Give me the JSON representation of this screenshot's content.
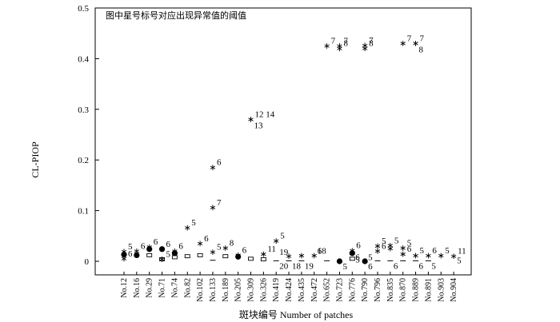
{
  "chart_data": {
    "type": "scatter",
    "title": "",
    "note": "图中星号标号对应出现异常值的阈值",
    "xlabel": "斑块编号 Number of patches",
    "ylabel": "CL-PIOP",
    "ylim": [
      0,
      0.5
    ],
    "yticks": [
      "0",
      "0.1",
      "0.2",
      "0.3",
      "0.4",
      "0.5"
    ],
    "grid": false,
    "categories": [
      "No.12",
      "No.16",
      "No.29",
      "No.71",
      "No.74",
      "No.82",
      "No.102",
      "No.133",
      "No.189",
      "No.205",
      "No.309",
      "No.326",
      "No.419",
      "No.424",
      "No.435",
      "No.472",
      "No.652",
      "No.723",
      "No.776",
      "No.790",
      "No.796",
      "No.835",
      "No.870",
      "No.889",
      "No.891",
      "No.903",
      "No.904"
    ],
    "points": [
      {
        "cat": "No.12",
        "y": 0.013,
        "marker": "dot"
      },
      {
        "cat": "No.12",
        "y": 0.019,
        "marker": "star",
        "label": "5"
      },
      {
        "cat": "No.12",
        "y": 0.005,
        "marker": "star",
        "label": "6"
      },
      {
        "cat": "No.16",
        "y": 0.012,
        "marker": "dot"
      },
      {
        "cat": "No.16",
        "y": 0.02,
        "marker": "star",
        "label": "6"
      },
      {
        "cat": "No.29",
        "y": 0.024,
        "marker": "dot"
      },
      {
        "cat": "No.29",
        "y": 0.012,
        "marker": "box"
      },
      {
        "cat": "No.29",
        "y": 0.028,
        "marker": "star",
        "label": "6"
      },
      {
        "cat": "No.71",
        "y": 0.024,
        "marker": "dot"
      },
      {
        "cat": "No.71",
        "y": 0.004,
        "marker": "box"
      },
      {
        "cat": "No.71",
        "y": 0.004,
        "marker": "star",
        "label": "5"
      },
      {
        "cat": "No.71",
        "y": 0.024,
        "marker": "star",
        "label": "6"
      },
      {
        "cat": "No.74",
        "y": 0.016,
        "marker": "dot"
      },
      {
        "cat": "No.74",
        "y": 0.008,
        "marker": "box"
      },
      {
        "cat": "No.74",
        "y": 0.02,
        "marker": "star",
        "label": "6"
      },
      {
        "cat": "No.82",
        "y": 0.01,
        "marker": "box"
      },
      {
        "cat": "No.82",
        "y": 0.066,
        "marker": "star",
        "label": "5"
      },
      {
        "cat": "No.102",
        "y": 0.012,
        "marker": "box"
      },
      {
        "cat": "No.102",
        "y": 0.035,
        "marker": "star",
        "label": "6"
      },
      {
        "cat": "No.133",
        "y": 0.002,
        "marker": "dash"
      },
      {
        "cat": "No.133",
        "y": 0.018,
        "marker": "star",
        "label": "5"
      },
      {
        "cat": "No.133",
        "y": 0.106,
        "marker": "star",
        "label": "7"
      },
      {
        "cat": "No.133",
        "y": 0.185,
        "marker": "star",
        "label": "6"
      },
      {
        "cat": "No.189",
        "y": 0.01,
        "marker": "box"
      },
      {
        "cat": "No.189",
        "y": 0.026,
        "marker": "star",
        "label": "8"
      },
      {
        "cat": "No.205",
        "y": 0.009,
        "marker": "dot"
      },
      {
        "cat": "No.205",
        "y": 0.012,
        "marker": "star",
        "label": "6"
      },
      {
        "cat": "No.309",
        "y": 0.005,
        "marker": "box"
      },
      {
        "cat": "No.309",
        "y": 0.28,
        "marker": "star",
        "label": "12 14"
      },
      {
        "cat": "No.309",
        "y": 0.269,
        "marker": "label",
        "label": "13"
      },
      {
        "cat": "No.326",
        "y": 0.004,
        "marker": "box"
      },
      {
        "cat": "No.326",
        "y": 0.014,
        "marker": "star",
        "label": "11"
      },
      {
        "cat": "No.419",
        "y": 0.001,
        "marker": "dash",
        "label": "20"
      },
      {
        "cat": "No.419",
        "y": 0.04,
        "marker": "star",
        "label": "5"
      },
      {
        "cat": "No.419",
        "y": 0.019,
        "marker": "label",
        "label": "19"
      },
      {
        "cat": "No.424",
        "y": 0.001,
        "marker": "dash",
        "label": "18"
      },
      {
        "cat": "No.424",
        "y": 0.01,
        "marker": "star"
      },
      {
        "cat": "No.435",
        "y": 0.001,
        "marker": "dash",
        "label": "19"
      },
      {
        "cat": "No.435",
        "y": 0.011,
        "marker": "star"
      },
      {
        "cat": "No.472",
        "y": 0.011,
        "marker": "star"
      },
      {
        "cat": "No.472",
        "y": 0.021,
        "marker": "label",
        "label": "18"
      },
      {
        "cat": "No.472",
        "y": 0.021,
        "marker": "label",
        "label": "6"
      },
      {
        "cat": "No.652",
        "y": 0.001,
        "marker": "dash"
      },
      {
        "cat": "No.652",
        "y": 0.425,
        "marker": "star",
        "label": "7"
      },
      {
        "cat": "No.723",
        "y": 0.0,
        "marker": "dot",
        "label": "5"
      },
      {
        "cat": "No.723",
        "y": 0.425,
        "marker": "star",
        "label": "7"
      },
      {
        "cat": "No.723",
        "y": 0.42,
        "marker": "star",
        "label": "8"
      },
      {
        "cat": "No.776",
        "y": 0.016,
        "marker": "dot"
      },
      {
        "cat": "No.776",
        "y": 0.005,
        "marker": "box"
      },
      {
        "cat": "No.776",
        "y": 0.009,
        "marker": "label",
        "label": "6"
      },
      {
        "cat": "No.776",
        "y": 0.021,
        "marker": "star",
        "label": "6"
      },
      {
        "cat": "No.776",
        "y": 0.004,
        "marker": "label",
        "label": "5"
      },
      {
        "cat": "No.790",
        "y": 0.0,
        "marker": "dot",
        "label": "6"
      },
      {
        "cat": "No.790",
        "y": 0.426,
        "marker": "star",
        "label": "7"
      },
      {
        "cat": "No.790",
        "y": 0.42,
        "marker": "star",
        "label": "8"
      },
      {
        "cat": "No.790",
        "y": 0.009,
        "marker": "label",
        "label": "5"
      },
      {
        "cat": "No.796",
        "y": 0.03,
        "marker": "star",
        "label": "5"
      },
      {
        "cat": "No.796",
        "y": 0.02,
        "marker": "star",
        "label": "6"
      },
      {
        "cat": "No.796",
        "y": 0.001,
        "marker": "dash"
      },
      {
        "cat": "No.835",
        "y": 0.031,
        "marker": "star",
        "label": "5"
      },
      {
        "cat": "No.835",
        "y": 0.025,
        "marker": "star"
      },
      {
        "cat": "No.835",
        "y": 0.001,
        "marker": "dash",
        "label": "6"
      },
      {
        "cat": "No.870",
        "y": 0.43,
        "marker": "star",
        "label": "7"
      },
      {
        "cat": "No.870",
        "y": 0.026,
        "marker": "star",
        "label": "5"
      },
      {
        "cat": "No.870",
        "y": 0.014,
        "marker": "star",
        "label": "6"
      },
      {
        "cat": "No.870",
        "y": 0.001,
        "marker": "dash"
      },
      {
        "cat": "No.889",
        "y": 0.43,
        "marker": "star",
        "label": "7"
      },
      {
        "cat": "No.889",
        "y": 0.419,
        "marker": "label",
        "label": "8"
      },
      {
        "cat": "No.889",
        "y": 0.011,
        "marker": "star",
        "label": "5"
      },
      {
        "cat": "No.889",
        "y": 0.001,
        "marker": "dash",
        "label": "6"
      },
      {
        "cat": "No.891",
        "y": 0.011,
        "marker": "star",
        "label": "6"
      },
      {
        "cat": "No.891",
        "y": 0.001,
        "marker": "dash",
        "label": "5"
      },
      {
        "cat": "No.903",
        "y": 0.011,
        "marker": "star",
        "label": "5"
      },
      {
        "cat": "No.904",
        "y": 0.01,
        "marker": "star",
        "label": "11"
      },
      {
        "cat": "No.904",
        "y": 0.002,
        "marker": "label",
        "label": "5"
      }
    ]
  }
}
